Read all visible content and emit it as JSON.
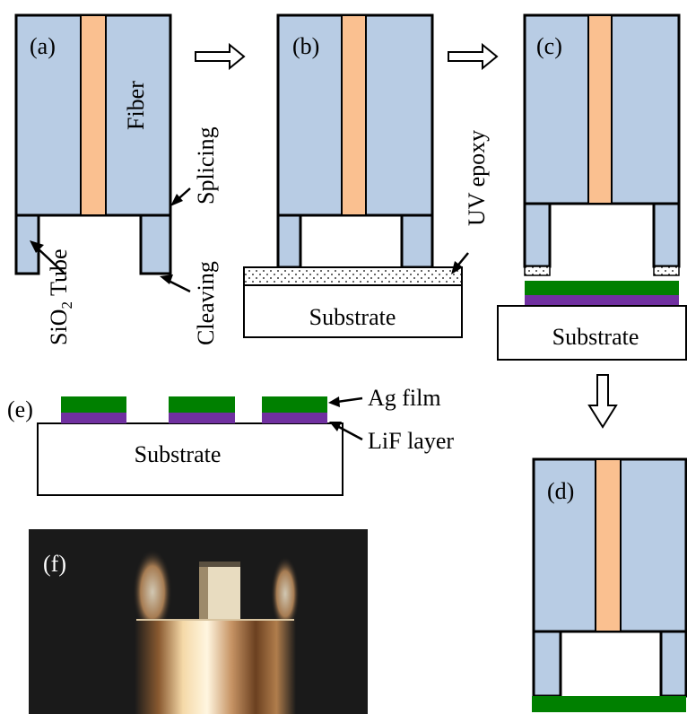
{
  "colors": {
    "fiber": "#b8cce4",
    "core": "#fac090",
    "silver": "#008000",
    "lif": "#7030a0",
    "outline": "#000000",
    "photo_bg": "#1a1a1a"
  },
  "panels": {
    "a": {
      "tag": "(a)",
      "fiber_label": "Fiber",
      "splicing_label": "Splicing",
      "tube_label_main": "SiO",
      "tube_label_sub": "2",
      "tube_label_rest": " Tube",
      "cleaving_label": "Cleaving"
    },
    "b": {
      "tag": "(b)",
      "epoxy_label": "UV epoxy",
      "substrate_label": "Substrate"
    },
    "c": {
      "tag": "(c)",
      "substrate_label": "Substrate"
    },
    "d": {
      "tag": "(d)"
    },
    "e": {
      "tag": "(e)",
      "ag_label": "Ag film",
      "lif_label": "LiF layer",
      "substrate_label": "Substrate"
    },
    "f": {
      "tag": "(f)"
    }
  }
}
